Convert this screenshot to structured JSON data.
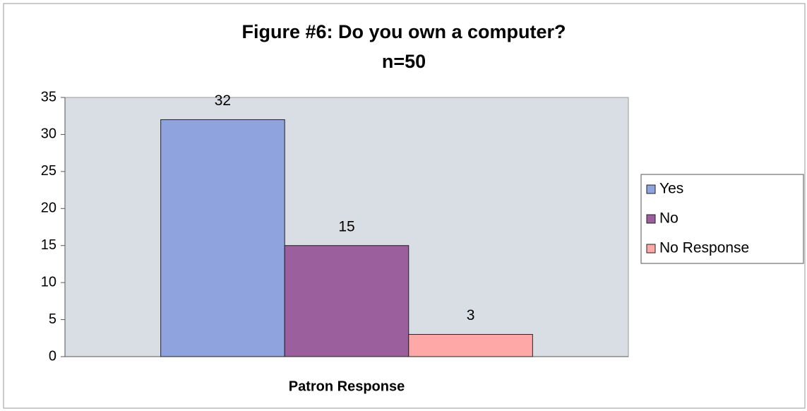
{
  "chart_data": {
    "type": "bar",
    "title": "Figure #6: Do you own a computer?",
    "subtitle": "n=50",
    "categories": [
      "Patron Response"
    ],
    "series": [
      {
        "name": "Yes",
        "color": "#8fa3de",
        "values": [
          32
        ]
      },
      {
        "name": "No",
        "color": "#9c5f9e",
        "values": [
          15
        ]
      },
      {
        "name": "No Response",
        "color": "#ffa8a8",
        "values": [
          3
        ]
      }
    ],
    "ylim": [
      0,
      35
    ],
    "yticks": [
      0,
      5,
      10,
      15,
      20,
      25,
      30,
      35
    ],
    "legend": "right"
  }
}
